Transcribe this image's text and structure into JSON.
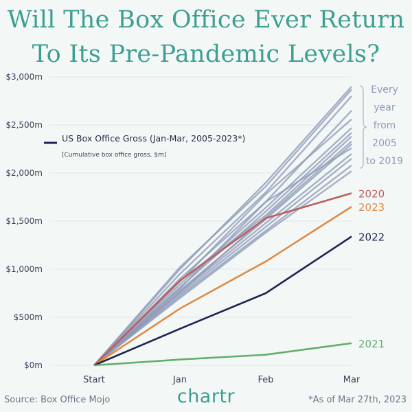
{
  "title_line1": "Will The Box Office Ever Return",
  "title_line2": "To Its Pre-Pandemic Levels?",
  "source": "Source: Box Office Mojo",
  "note": "*As of Mar 27th, 2023",
  "logo": "chartr",
  "colors": {
    "background": "#f3f8f7",
    "title": "#3e9e92",
    "historic": "#8e9ab8",
    "y2020": "#b9605f",
    "y2023": "#df8b45",
    "y2022": "#1d2550",
    "y2021": "#62ad6c"
  },
  "chart_data": {
    "type": "line",
    "x": [
      "Start",
      "Jan",
      "Feb",
      "Mar"
    ],
    "ylim": [
      0,
      3000
    ],
    "yticks": [
      0,
      500,
      1000,
      1500,
      2000,
      2500,
      3000
    ],
    "ytick_labels": [
      "$0m",
      "$500m",
      "$1,000m",
      "$1,500m",
      "$2,000m",
      "$2,500m",
      "$3,000m"
    ],
    "grid": true,
    "legend": {
      "label": "US Box Office Gross (Jan-Mar, 2005-2023*)",
      "sublabel": "[Cumulative box office gross, $m]",
      "placement": "top-left"
    },
    "bracket_label": [
      "Every",
      "year",
      "from",
      "2005",
      "to 2019"
    ],
    "historic_series": [
      {
        "values": [
          0,
          1000,
          1900,
          2900
        ]
      },
      {
        "values": [
          0,
          950,
          1800,
          2800
        ]
      },
      {
        "values": [
          0,
          900,
          1700,
          2650
        ]
      },
      {
        "values": [
          0,
          870,
          1780,
          2560
        ]
      },
      {
        "values": [
          0,
          840,
          1640,
          2470
        ]
      },
      {
        "values": [
          0,
          810,
          1600,
          2420
        ]
      },
      {
        "values": [
          0,
          780,
          1520,
          2300
        ]
      },
      {
        "values": [
          0,
          760,
          1480,
          2200
        ]
      },
      {
        "values": [
          0,
          740,
          1440,
          2150
        ]
      },
      {
        "values": [
          0,
          720,
          1400,
          2080
        ]
      },
      {
        "values": [
          0,
          700,
          1380,
          2020
        ]
      },
      {
        "values": [
          0,
          1020,
          1860,
          2870
        ]
      },
      {
        "values": [
          0,
          880,
          1560,
          2380
        ]
      },
      {
        "values": [
          0,
          800,
          1700,
          2260
        ]
      },
      {
        "values": [
          0,
          760,
          1540,
          2330
        ]
      }
    ],
    "series": [
      {
        "name": "2020",
        "values": [
          0,
          880,
          1530,
          1790
        ],
        "color": "#b9605f"
      },
      {
        "name": "2023",
        "values": [
          0,
          590,
          1080,
          1650
        ],
        "color": "#df8b45"
      },
      {
        "name": "2022",
        "values": [
          0,
          380,
          750,
          1340
        ],
        "color": "#1d2550"
      },
      {
        "name": "2021",
        "values": [
          0,
          60,
          110,
          230
        ],
        "color": "#62ad6c"
      }
    ]
  }
}
